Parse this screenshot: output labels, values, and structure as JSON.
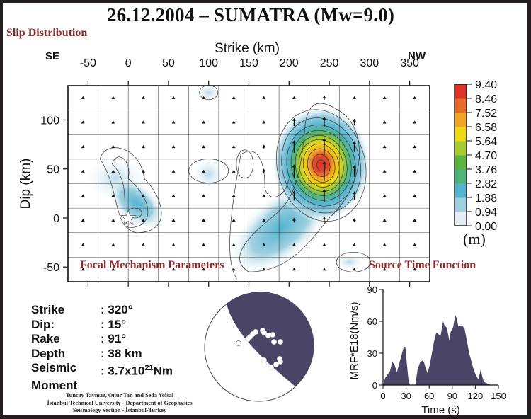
{
  "title": "26.12.2004  –  SUMATRA  (Mw=9.0)",
  "sections": {
    "slip": "Slip Distribution",
    "focal": "Focal Mechanism Parameters",
    "stf": "Source Time Function"
  },
  "focal_mechanism": {
    "rows": [
      {
        "label": "Strike",
        "value": ": 320°"
      },
      {
        "label": "Dip:",
        "value": ": 15°"
      },
      {
        "label": "Rake",
        "value": ": 91°"
      },
      {
        "label": "Depth",
        "value": ": 38 km"
      },
      {
        "label": "Seismic",
        "value": ": 3.7x10",
        "sup": "21",
        "unit": "Nm"
      },
      {
        "label": "Moment",
        "value": ""
      }
    ],
    "beachball_color": "#4a4466"
  },
  "credits": [
    "Tuncay Taymaz, Onur Tan and Seda Yolsal",
    "İstanbul Technical University - Department of Geophysics",
    "Seismology Section - İstanbul-Turkey"
  ],
  "colorbar": {
    "unit": "(m)",
    "ticks": [
      "9.40",
      "8.46",
      "7.52",
      "6.58",
      "5.64",
      "4.70",
      "3.76",
      "2.82",
      "1.88",
      "0.94",
      "0.00"
    ],
    "colors": [
      "#ffffff",
      "#e4edf3",
      "#9fd0e2",
      "#55b4cf",
      "#4fb57a",
      "#5db53f",
      "#a6cc32",
      "#f1d911",
      "#f0a622",
      "#ea6a2a",
      "#de3427"
    ]
  },
  "chart_data": [
    {
      "type": "heatmap",
      "title": "Slip Distribution",
      "xlabel": "Strike (km)",
      "ylabel": "Dip (km)",
      "x_ticks": [
        -50,
        0,
        50,
        100,
        150,
        200,
        250,
        300,
        350
      ],
      "y_ticks": [
        100,
        50,
        0,
        -50
      ],
      "xlim": [
        -75,
        375
      ],
      "ylim": [
        -65,
        135
      ],
      "annotations": {
        "left": "SE",
        "right": "NW"
      },
      "hypocenter": {
        "x": 0,
        "y": 0,
        "marker": "star"
      },
      "max_slip_m": 9.4,
      "slip_patches": [
        {
          "x": 245,
          "y": 55,
          "peak_m": 9.4
        },
        {
          "x": 12,
          "y": 2,
          "peak_m": 2.3
        },
        {
          "x": 150,
          "y": -40,
          "peak_m": 2.0
        },
        {
          "x": 275,
          "y": -45,
          "peak_m": 0.9
        }
      ]
    },
    {
      "type": "area",
      "title": "Source Time Function",
      "xlabel": "Time (s)",
      "ylabel": "MRF*E18(Nm/s)",
      "xlim": [
        0,
        150
      ],
      "ylim": [
        0,
        90
      ],
      "x_ticks": [
        0,
        30,
        60,
        90,
        120,
        150
      ],
      "y_ticks": [
        0,
        30,
        60,
        90
      ],
      "color": "#4a4466",
      "x": [
        0,
        3,
        6,
        9,
        12,
        15,
        18,
        21,
        24,
        27,
        29,
        31,
        33,
        35,
        37,
        40,
        42,
        45,
        48,
        51,
        53,
        55,
        58,
        61,
        63,
        66,
        69,
        71,
        73,
        75,
        78,
        80,
        83,
        86,
        88,
        91,
        94,
        96,
        98,
        100,
        103,
        106,
        109,
        112,
        115,
        118,
        121,
        124,
        127,
        129,
        131,
        134,
        137,
        140
      ],
      "values": [
        0,
        7,
        10,
        13,
        22,
        19,
        12,
        20,
        28,
        36,
        36,
        20,
        5,
        0,
        0,
        0,
        0,
        15,
        21,
        23,
        22,
        17,
        11,
        20,
        28,
        40,
        49,
        49,
        47,
        47,
        60,
        56,
        54,
        42,
        50,
        54,
        66,
        62,
        55,
        56,
        56,
        53,
        42,
        30,
        22,
        14,
        9,
        5,
        15,
        8,
        3,
        2,
        1,
        0
      ]
    }
  ]
}
